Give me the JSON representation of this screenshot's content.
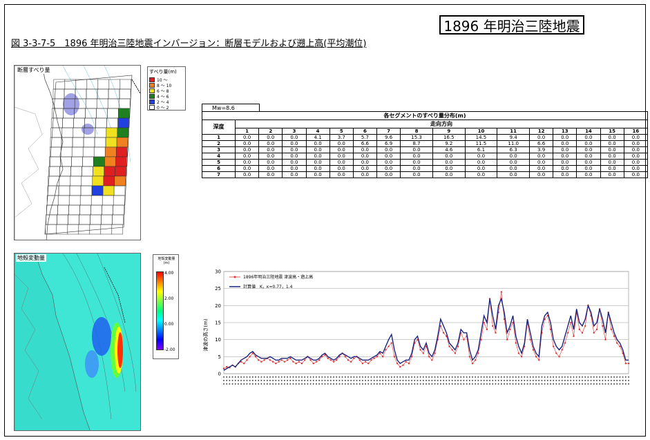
{
  "header": {
    "big_title": "1896 年明治三陸地震",
    "figure_title": "図 3-3-7-5　1896 年明治三陸地震インバージョン：断層モデルおよび遡上高(平均潮位)"
  },
  "map_slip": {
    "label": "断層すべり量"
  },
  "legend_slip": {
    "title": "すべり量(m)",
    "items": [
      {
        "label": "10 ～",
        "color": "#e02020"
      },
      {
        "label": "8 ～ 10",
        "color": "#f08020"
      },
      {
        "label": "6 ～ 8",
        "color": "#f0e020"
      },
      {
        "label": "4 ～ 6",
        "color": "#208020"
      },
      {
        "label": "2 ～ 4",
        "color": "#2040e0"
      },
      {
        "label": "0 ～ 2",
        "color": "#ffffff"
      }
    ]
  },
  "map_deform": {
    "label": "地殻変動量"
  },
  "legend_deform": {
    "title": "地殻変動量 (m)",
    "ticks": [
      "4.00",
      "2.00",
      "0.00",
      "-2.00"
    ]
  },
  "table": {
    "mw": "Mw=8.6",
    "title": "各セグメントのすべり量分布(m)",
    "depth_label": "深度",
    "strike_label": "走向方向",
    "columns": [
      "1",
      "2",
      "3",
      "4",
      "5",
      "6",
      "7",
      "8",
      "9",
      "10",
      "11",
      "12",
      "13",
      "14",
      "15",
      "16"
    ],
    "rows": [
      {
        "depth": "1",
        "values": [
          "0.0",
          "0.0",
          "0.0",
          "4.1",
          "3.7",
          "5.7",
          "9.6",
          "15.3",
          "16.5",
          "14.5",
          "9.4",
          "0.0",
          "0.0",
          "0.0",
          "0.0",
          "0.0"
        ]
      },
      {
        "depth": "2",
        "values": [
          "0.0",
          "0.0",
          "0.0",
          "0.0",
          "0.0",
          "6.6",
          "6.9",
          "8.7",
          "9.2",
          "11.5",
          "11.0",
          "6.6",
          "0.0",
          "0.0",
          "0.0",
          "0.0"
        ]
      },
      {
        "depth": "3",
        "values": [
          "0.0",
          "0.0",
          "0.0",
          "0.0",
          "0.0",
          "0.0",
          "0.0",
          "0.0",
          "4.6",
          "6.1",
          "6.3",
          "3.9",
          "0.0",
          "0.0",
          "0.0",
          "0.0"
        ]
      },
      {
        "depth": "4",
        "values": [
          "0.0",
          "0.0",
          "0.0",
          "0.0",
          "0.0",
          "0.0",
          "0.0",
          "0.0",
          "0.0",
          "0.0",
          "0.0",
          "0.0",
          "0.0",
          "0.0",
          "0.0",
          "0.0"
        ]
      },
      {
        "depth": "5",
        "values": [
          "0.0",
          "0.0",
          "0.0",
          "0.0",
          "0.0",
          "0.0",
          "0.0",
          "0.0",
          "0.0",
          "0.0",
          "0.0",
          "0.0",
          "0.0",
          "0.0",
          "0.0",
          "0.0"
        ]
      },
      {
        "depth": "6",
        "values": [
          "0.0",
          "0.0",
          "0.0",
          "0.0",
          "0.0",
          "0.0",
          "0.0",
          "0.0",
          "0.0",
          "0.0",
          "0.0",
          "0.0",
          "0.0",
          "0.0",
          "0.0",
          "0.0"
        ]
      },
      {
        "depth": "7",
        "values": [
          "0.0",
          "0.0",
          "0.0",
          "0.0",
          "0.0",
          "0.0",
          "0.0",
          "0.0",
          "0.0",
          "0.0",
          "0.0",
          "0.0",
          "0.0",
          "0.0",
          "0.0",
          "0.0"
        ]
      }
    ]
  },
  "chart_data": {
    "type": "line",
    "title": "",
    "xlabel": "",
    "ylabel": "津波の高さ(m)",
    "ylim": [
      0,
      30
    ],
    "yticks": [
      0,
      5,
      10,
      15,
      20,
      25,
      30
    ],
    "grid": true,
    "legend_position": "top-left",
    "series": [
      {
        "name": "1896年明治三陸地震 津波高・遡上高",
        "color": "#e03030",
        "values": [
          1.5,
          2,
          1.8,
          2.5,
          2,
          3,
          3.5,
          3,
          4,
          5,
          6,
          5,
          4,
          3.5,
          4,
          4.5,
          4,
          3.5,
          3,
          3.5,
          4,
          3.5,
          4,
          4.5,
          3.5,
          3,
          3.5,
          3,
          4,
          5,
          4,
          3,
          3.5,
          4,
          5,
          5.5,
          4.5,
          4,
          3.5,
          4,
          5,
          6,
          5,
          4,
          3.5,
          4.5,
          5,
          4,
          3,
          3.5,
          3,
          4,
          4.5,
          5,
          6,
          5,
          7,
          8,
          9,
          5,
          3,
          2,
          2.5,
          3.5,
          3,
          5,
          9,
          10,
          7,
          6,
          8,
          5,
          4,
          6,
          10,
          14,
          12,
          11,
          8,
          7,
          6,
          8,
          12,
          10,
          11,
          5,
          3,
          4,
          6,
          10,
          15,
          13,
          22,
          14,
          12,
          18,
          24,
          16,
          10,
          13,
          15,
          9,
          6,
          5,
          8,
          15,
          10,
          7,
          5,
          4,
          12,
          16,
          17,
          13,
          8,
          6,
          5,
          7,
          9,
          12,
          15,
          11,
          18,
          13,
          12,
          14,
          20,
          17,
          12,
          13,
          19,
          14,
          10,
          18,
          13,
          11,
          9,
          8,
          6,
          3,
          3
        ]
      },
      {
        "name": "計算値　K，κ=0.77，1.4",
        "color": "#1a237e",
        "values": [
          1,
          1.5,
          2,
          2.5,
          2,
          3,
          4,
          4.5,
          5,
          6,
          6.5,
          5.5,
          5,
          4.5,
          4.5,
          4.5,
          5,
          4.5,
          4,
          4,
          4.5,
          4.5,
          4.5,
          5,
          4.5,
          4,
          4,
          4,
          4.5,
          5,
          4.5,
          4,
          4,
          4.5,
          5.5,
          6,
          5,
          4.5,
          4,
          4.5,
          5.5,
          6,
          5.5,
          5,
          4.5,
          5,
          5,
          4.5,
          4,
          4,
          4,
          4.5,
          5,
          5.5,
          6.5,
          6,
          8,
          10,
          11.5,
          7,
          4,
          3,
          3.5,
          4,
          4,
          6,
          10,
          11,
          8,
          7,
          9,
          6,
          5,
          7,
          11,
          16,
          14,
          12,
          9,
          8,
          7,
          9,
          13,
          12,
          12,
          7,
          4,
          5,
          7,
          12,
          17,
          15,
          22,
          17,
          13,
          20,
          22,
          18,
          12,
          14,
          17,
          11,
          8,
          6,
          9,
          16,
          12,
          8,
          6,
          5,
          14,
          17,
          18,
          15,
          10,
          8,
          7,
          8,
          11,
          14,
          17,
          13,
          19,
          15,
          14,
          16,
          20,
          18,
          14,
          15,
          19,
          16,
          12,
          18,
          15,
          12,
          10,
          9,
          7,
          4,
          4
        ]
      }
    ]
  }
}
